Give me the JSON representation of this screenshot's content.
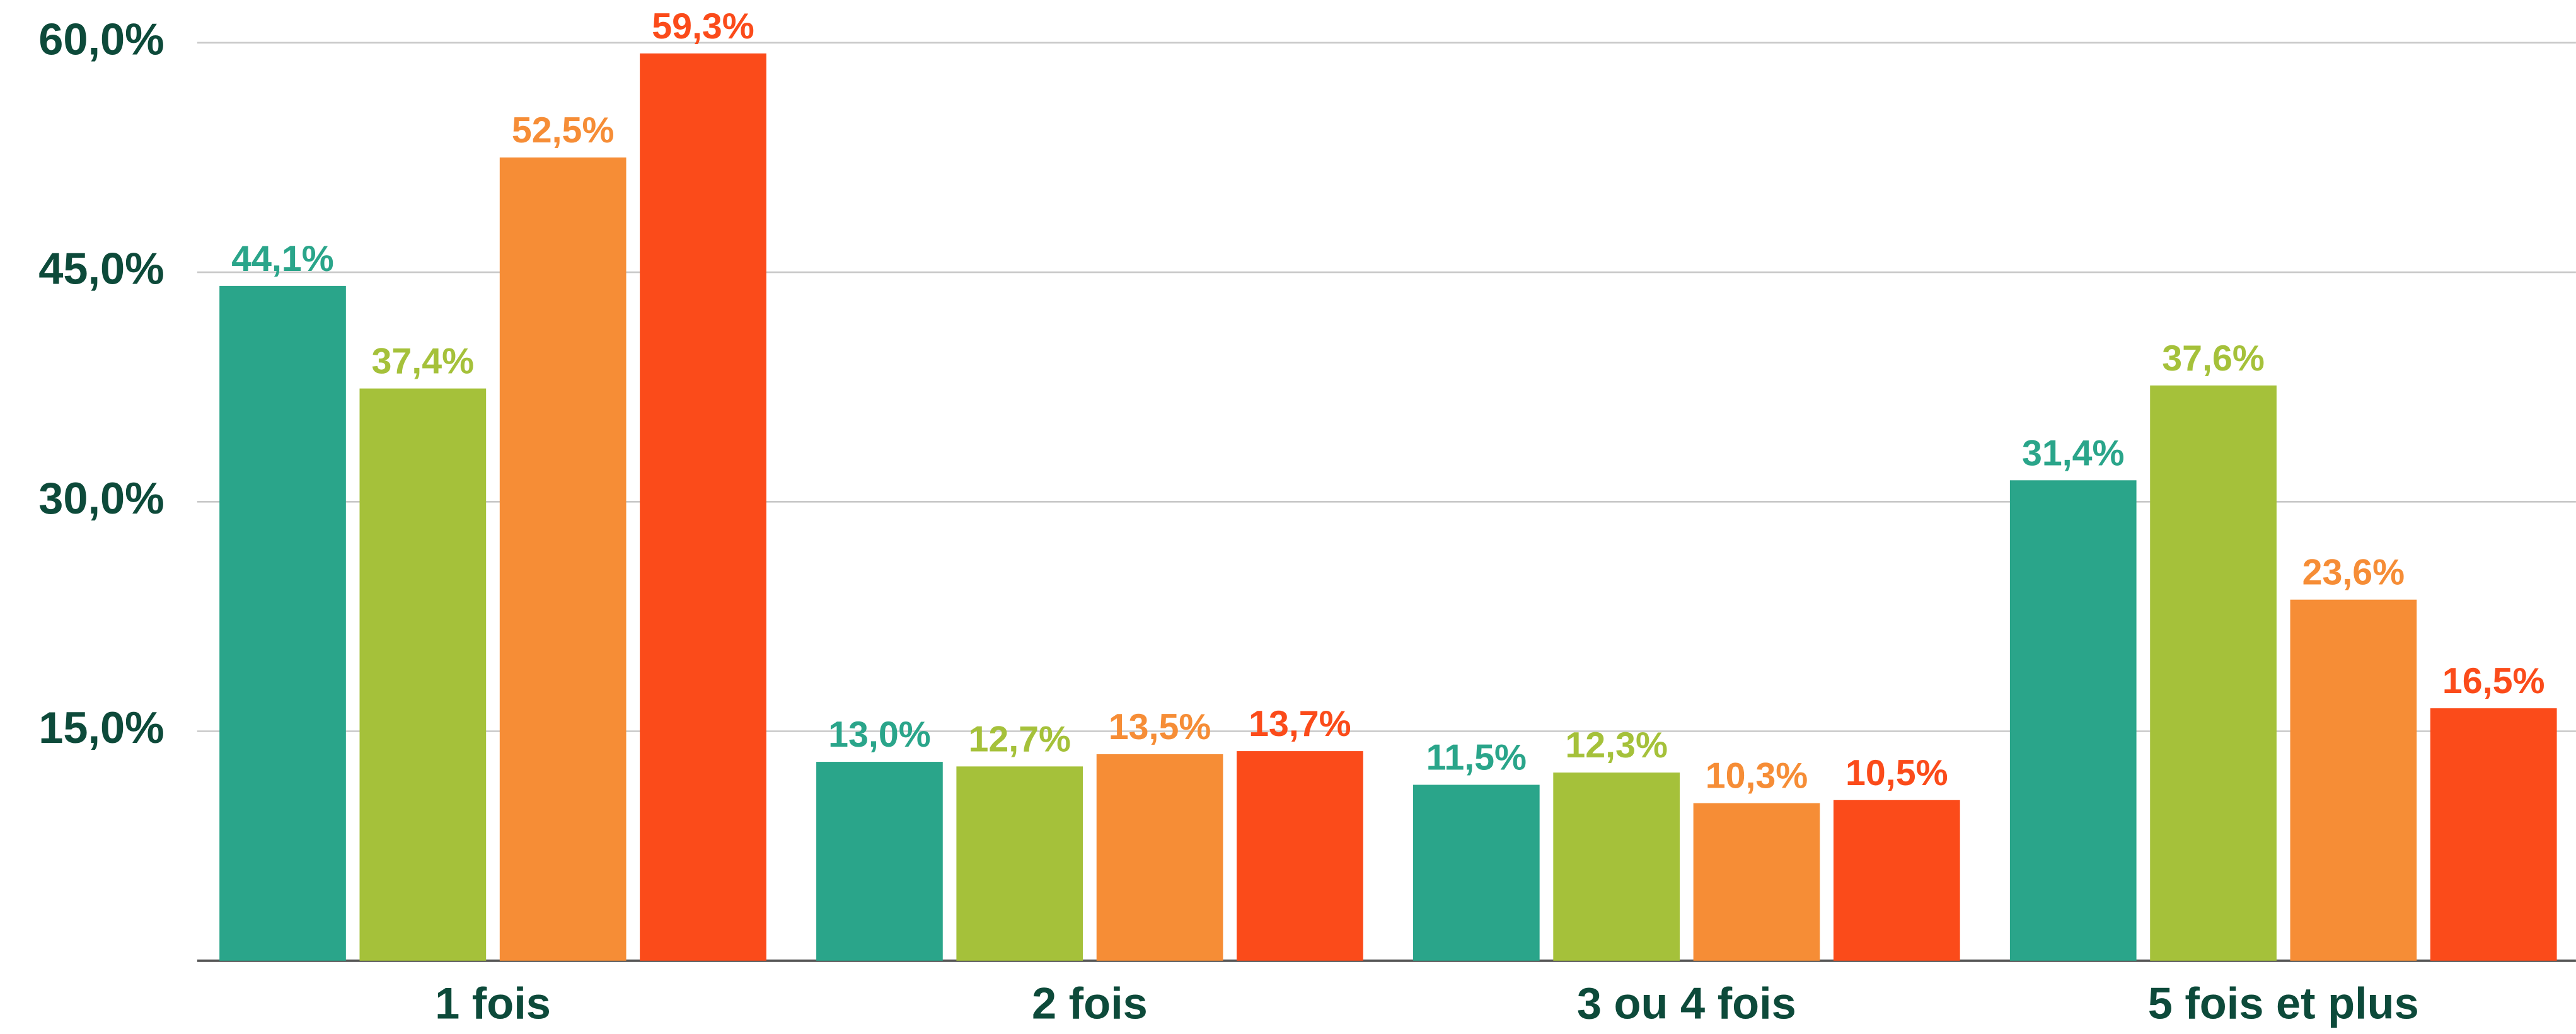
{
  "chart_data": {
    "type": "bar",
    "categories": [
      "1 fois",
      "2 fois",
      "3 ou 4 fois",
      "5 fois et plus"
    ],
    "series": [
      {
        "color": "#2aa58a",
        "values": [
          44.1,
          13.0,
          11.5,
          31.4
        ],
        "value_labels": [
          "44,1%",
          "13,0%",
          "11,5%",
          "31,4%"
        ]
      },
      {
        "color": "#a5c13a",
        "values": [
          37.4,
          12.7,
          12.3,
          37.6
        ],
        "value_labels": [
          "37,4%",
          "12,7%",
          "12,3%",
          "37,6%"
        ]
      },
      {
        "color": "#f68d36",
        "values": [
          52.5,
          13.5,
          10.3,
          23.6
        ],
        "value_labels": [
          "52,5%",
          "13,5%",
          "10,3%",
          "23,6%"
        ]
      },
      {
        "color": "#fb4b1a",
        "values": [
          59.3,
          13.7,
          10.5,
          16.5
        ],
        "value_labels": [
          "59,3%",
          "13,7%",
          "10,5%",
          "16,5%"
        ]
      }
    ],
    "ylim": [
      0,
      60
    ],
    "yticks": [
      {
        "value": 15,
        "label": "15,0%"
      },
      {
        "value": 30,
        "label": "30,0%"
      },
      {
        "value": 45,
        "label": "45,0%"
      },
      {
        "value": 60,
        "label": "60,0%"
      }
    ],
    "grid": true
  }
}
